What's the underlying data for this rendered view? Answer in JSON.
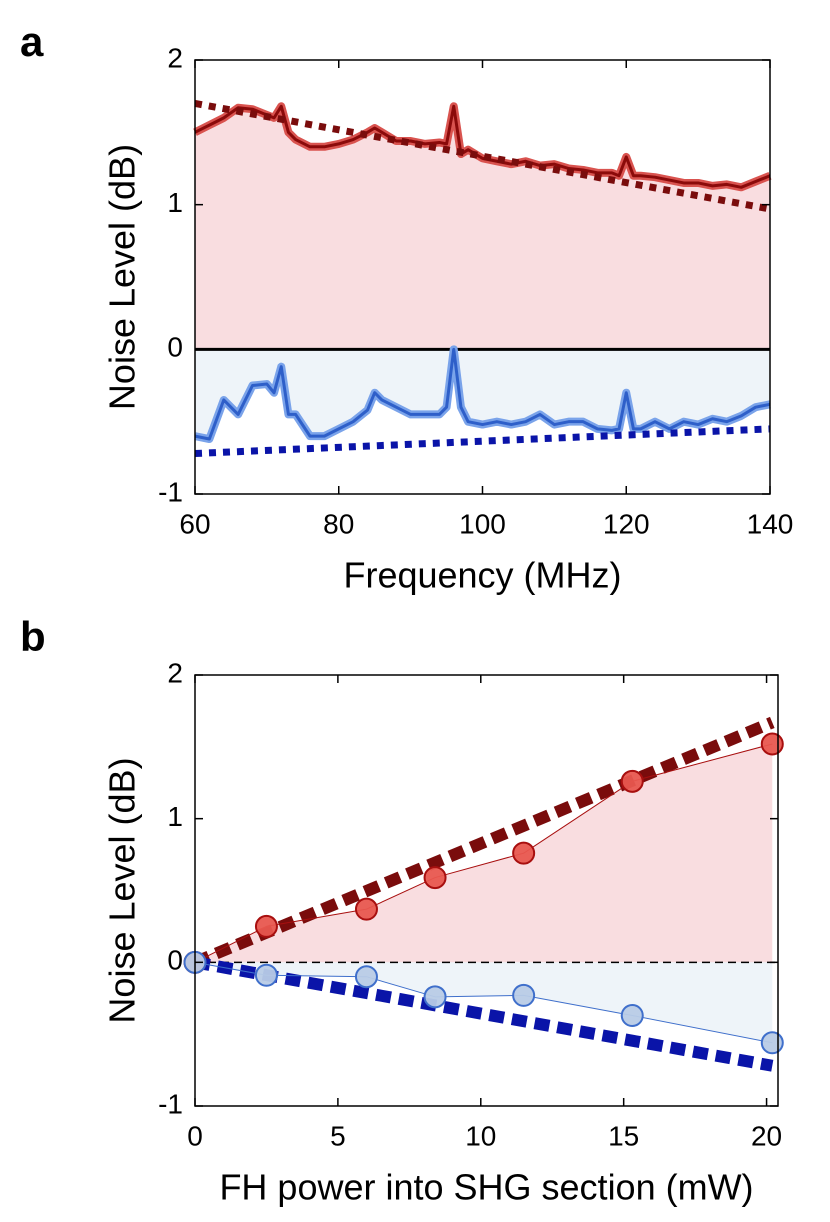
{
  "chart_data": [
    {
      "type": "line",
      "panel_label": "a",
      "xlabel": "Frequency (MHz)",
      "ylabel": "Noise Level (dB)",
      "xlim": [
        60,
        140
      ],
      "ylim": [
        -1,
        2
      ],
      "xticks": [
        60,
        80,
        100,
        120,
        140
      ],
      "yticks": [
        -1,
        0,
        1,
        2
      ],
      "zero_line": "solid",
      "x": [
        60,
        62,
        64,
        66,
        68,
        70,
        71,
        72,
        73,
        74,
        76,
        78,
        80,
        82,
        84,
        85,
        86,
        88,
        90,
        92,
        94,
        95,
        96,
        97,
        98,
        100,
        102,
        104,
        106,
        108,
        110,
        112,
        114,
        116,
        118,
        119,
        120,
        121,
        122,
        124,
        126,
        128,
        130,
        132,
        134,
        136,
        138,
        140
      ],
      "series": [
        {
          "style": "line",
          "color": "#8b0a0a",
          "halo": "#d9534f",
          "fill": "#f9dde0",
          "values": [
            1.5,
            1.55,
            1.6,
            1.67,
            1.66,
            1.62,
            1.6,
            1.68,
            1.5,
            1.45,
            1.4,
            1.4,
            1.42,
            1.45,
            1.5,
            1.53,
            1.5,
            1.44,
            1.44,
            1.42,
            1.43,
            1.42,
            1.68,
            1.35,
            1.38,
            1.32,
            1.3,
            1.28,
            1.3,
            1.27,
            1.28,
            1.25,
            1.24,
            1.22,
            1.22,
            1.2,
            1.33,
            1.2,
            1.2,
            1.19,
            1.17,
            1.15,
            1.15,
            1.13,
            1.14,
            1.12,
            1.16,
            1.2
          ]
        },
        {
          "style": "line",
          "color": "#2e5fc9",
          "halo": "#7aa3ea",
          "fill": "#eef4f9",
          "values": [
            -0.6,
            -0.62,
            -0.35,
            -0.45,
            -0.25,
            -0.24,
            -0.3,
            -0.12,
            -0.45,
            -0.45,
            -0.6,
            -0.6,
            -0.55,
            -0.5,
            -0.42,
            -0.3,
            -0.35,
            -0.4,
            -0.45,
            -0.45,
            -0.45,
            -0.4,
            0,
            -0.4,
            -0.5,
            -0.52,
            -0.5,
            -0.52,
            -0.5,
            -0.45,
            -0.52,
            -0.5,
            -0.5,
            -0.55,
            -0.56,
            -0.55,
            -0.3,
            -0.55,
            -0.55,
            -0.5,
            -0.55,
            -0.5,
            -0.52,
            -0.48,
            -0.5,
            -0.46,
            -0.4,
            -0.38
          ]
        },
        {
          "style": "dotted",
          "color": "#7a0c0c",
          "x": [
            60,
            140
          ],
          "values": [
            1.7,
            0.97
          ]
        },
        {
          "style": "dotted",
          "color": "#0a14a8",
          "x": [
            60,
            140
          ],
          "values": [
            -0.72,
            -0.55
          ]
        }
      ]
    },
    {
      "type": "line",
      "panel_label": "b",
      "xlabel": "FH power into SHG section (mW)",
      "ylabel": "Noise Level (dB)",
      "xlim": [
        0,
        20.4
      ],
      "ylim": [
        -1,
        2
      ],
      "xticks": [
        0,
        5,
        10,
        15,
        20
      ],
      "yticks": [
        -1,
        0,
        1,
        2
      ],
      "zero_line": "dashed",
      "x": [
        0,
        2.5,
        6,
        8.4,
        11.5,
        15.3,
        20.2
      ],
      "series": [
        {
          "style": "dashed",
          "color": "#7a0c0c",
          "x": [
            0,
            20.2
          ],
          "values": [
            0,
            1.67
          ]
        },
        {
          "style": "dashed",
          "color": "#0a14a8",
          "x": [
            0,
            20.2
          ],
          "values": [
            0,
            -0.72
          ]
        },
        {
          "style": "markers",
          "color": "#a80f0f",
          "marker_fill": "#e8574f",
          "fill": "#f9dde0",
          "values": [
            0,
            0.25,
            0.37,
            0.59,
            0.76,
            1.26,
            1.52
          ]
        },
        {
          "style": "markers",
          "color": "#3f6fcb",
          "marker_fill": "#b8cbe6",
          "fill": "#eef4f9",
          "values": [
            0,
            -0.09,
            -0.1,
            -0.24,
            -0.23,
            -0.37,
            -0.56
          ]
        }
      ]
    }
  ]
}
